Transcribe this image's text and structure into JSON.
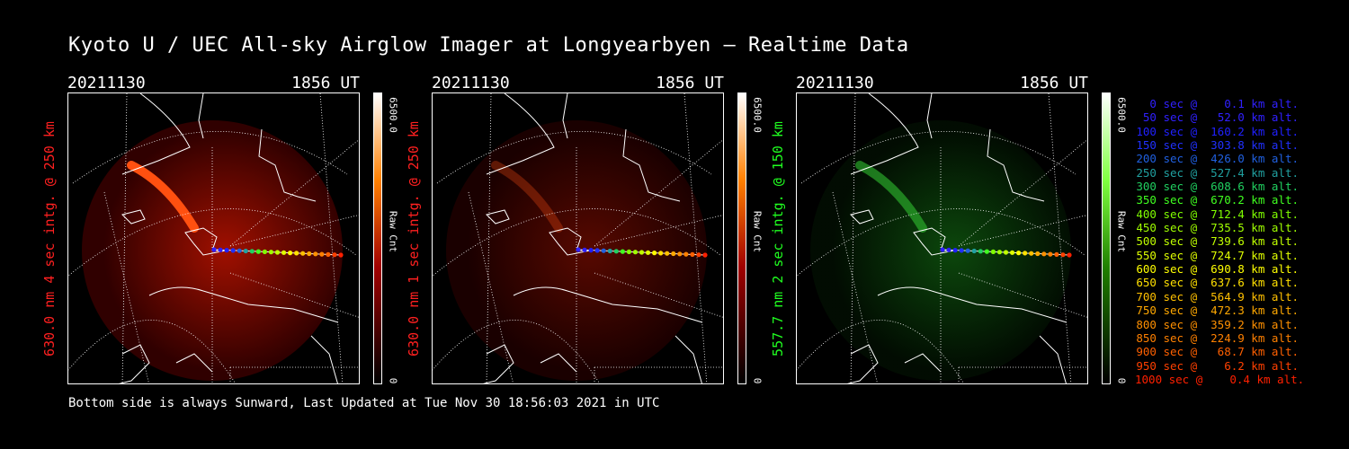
{
  "title": "Kyoto U / UEC All-sky Airglow Imager at Longyearbyen — Realtime Data",
  "footer": "Bottom side is always Sunward, Last Updated at Tue Nov 30 18:56:03 2021 in UTC",
  "panels": [
    {
      "date": "20211130",
      "time": "1856 UT",
      "label": "630.0 nm 4 sec intg. @ 250 km",
      "label_color": "#ff2020",
      "cbar_max": "6500.0",
      "cbar_min": "0",
      "cbar_unit": "Raw Cnt",
      "colormap": "red",
      "brightness": 1.0
    },
    {
      "date": "20211130",
      "time": "1856 UT",
      "label": "630.0 nm 1 sec intg. @ 250 km",
      "label_color": "#ff2020",
      "cbar_max": "6500.0",
      "cbar_min": "0",
      "cbar_unit": "Raw Cnt",
      "colormap": "red",
      "brightness": 0.3
    },
    {
      "date": "20211130",
      "time": "1856 UT",
      "label": "557.7 nm 2 sec intg. @ 150 km",
      "label_color": "#20ff20",
      "cbar_max": "6500.0",
      "cbar_min": "0",
      "cbar_unit": "Raw Cnt",
      "colormap": "green",
      "brightness": 0.6
    }
  ],
  "legend": [
    {
      "text": "0 sec @    0.1 km alt.",
      "color": "#3020ff"
    },
    {
      "text": "50 sec @   52.0 km alt.",
      "color": "#3020ff"
    },
    {
      "text": "100 sec @  160.2 km alt.",
      "color": "#2020ff"
    },
    {
      "text": "150 sec @  303.8 km alt.",
      "color": "#2030ff"
    },
    {
      "text": "200 sec @  426.0 km alt.",
      "color": "#2060e0"
    },
    {
      "text": "250 sec @  527.4 km alt.",
      "color": "#20a0a0"
    },
    {
      "text": "300 sec @  608.6 km alt.",
      "color": "#20d060"
    },
    {
      "text": "350 sec @  670.2 km alt.",
      "color": "#40ff20"
    },
    {
      "text": "400 sec @  712.4 km alt.",
      "color": "#80ff00"
    },
    {
      "text": "450 sec @  735.5 km alt.",
      "color": "#a0ff00"
    },
    {
      "text": "500 sec @  739.6 km alt.",
      "color": "#c0ff00"
    },
    {
      "text": "550 sec @  724.7 km alt.",
      "color": "#e0ff00"
    },
    {
      "text": "600 sec @  690.8 km alt.",
      "color": "#ffff00"
    },
    {
      "text": "650 sec @  637.6 km alt.",
      "color": "#ffe000"
    },
    {
      "text": "700 sec @  564.9 km alt.",
      "color": "#ffc000"
    },
    {
      "text": "750 sec @  472.3 km alt.",
      "color": "#ffa800"
    },
    {
      "text": "800 sec @  359.2 km alt.",
      "color": "#ff9000"
    },
    {
      "text": "850 sec @  224.9 km alt.",
      "color": "#ff8000"
    },
    {
      "text": "900 sec @   68.7 km alt.",
      "color": "#ff6000"
    },
    {
      "text": "950 sec @    6.2 km alt.",
      "color": "#ff4000"
    },
    {
      "text": "1000 sec @    0.4 km alt.",
      "color": "#ff2000"
    }
  ]
}
